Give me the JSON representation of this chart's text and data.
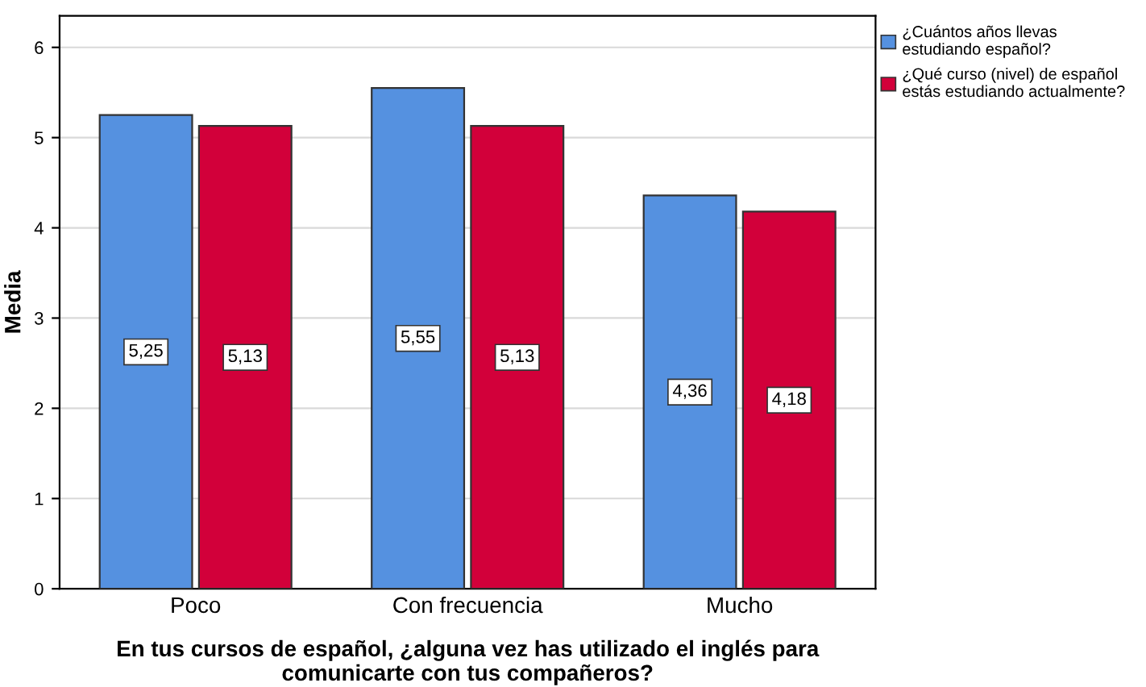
{
  "chart_data": {
    "type": "bar",
    "xlabel": "En tus cursos de español, ¿alguna vez has utilizado el inglés para\ncomunicarte con tus compañeros?",
    "ylabel": "Media",
    "categories": [
      "Poco",
      "Con frecuencia",
      "Mucho"
    ],
    "series": [
      {
        "name": "¿Cuántos años llevas\nestudiando español?",
        "color": "#5591e0",
        "values": [
          5.25,
          5.55,
          4.36
        ],
        "value_labels": [
          "5,25",
          "5,55",
          "4,36"
        ]
      },
      {
        "name": "¿Qué curso (nivel) de español\nestás estudiando actualmente?",
        "color": "#d2003a",
        "values": [
          5.13,
          5.13,
          4.18
        ],
        "value_labels": [
          "5,13",
          "5,13",
          "4,18"
        ]
      }
    ],
    "ylim": [
      0,
      6.35
    ],
    "yticks": [
      0,
      1,
      2,
      3,
      4,
      5,
      6
    ],
    "grid": "y",
    "legend": "top right"
  }
}
